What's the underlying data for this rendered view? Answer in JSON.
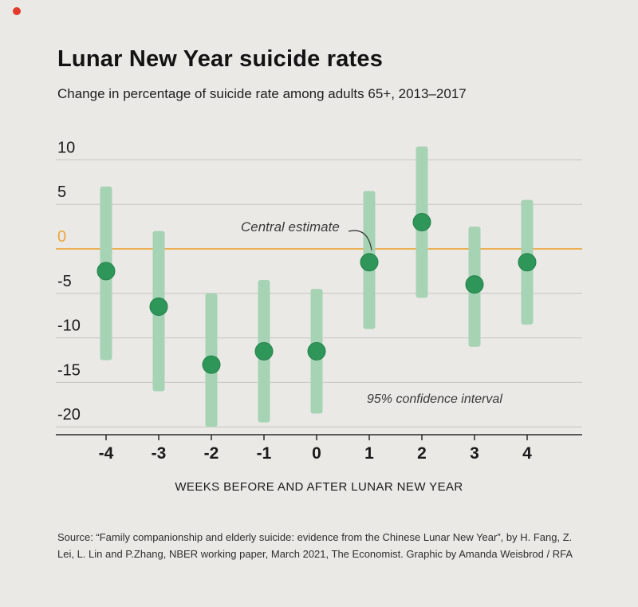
{
  "page": {
    "title": "Lunar New Year suicide rates",
    "subtitle": "Change in percentage of suicide rate among adults 65+, 2013–2017",
    "source": "Source: “Family companionship and elderly suicide: evidence from the Chinese Lunar New Year”, by H. Fang, Z. Lei, L. Lin and P.Zhang, NBER working paper, March 2021, The Economist. Graphic by Amanda Weisbrod / RFA"
  },
  "colors": {
    "background": "#eae9e6",
    "accent_red": "#e23b2e",
    "gridline": "#c7c6c2",
    "zero_line": "#eca73c",
    "ci_bar": "#a5d3b4",
    "estimate_dot": "#2f9659",
    "axis": "#2b2b2b",
    "text": "#1a1a1a"
  },
  "chart_data": {
    "type": "scatter",
    "title": "Lunar New Year suicide rates",
    "subtitle": "Change in percentage of suicide rate among adults 65+, 2013–2017",
    "xlabel": "WEEKS BEFORE AND AFTER LUNAR NEW YEAR",
    "ylabel": "",
    "categories": [
      -4,
      -3,
      -2,
      -1,
      0,
      1,
      2,
      3,
      4
    ],
    "series": [
      {
        "name": "Central estimate",
        "values": [
          -2.5,
          -6.5,
          -13,
          -11.5,
          -11.5,
          -1.5,
          3,
          -4,
          -1.5
        ]
      },
      {
        "name": "95% CI lower",
        "values": [
          -12.5,
          -16,
          -20,
          -19.5,
          -18.5,
          -9,
          -5.5,
          -11,
          -8.5
        ]
      },
      {
        "name": "95% CI upper",
        "values": [
          7,
          2,
          -5,
          -3.5,
          -4.5,
          6.5,
          11.5,
          2.5,
          5.5
        ]
      }
    ],
    "yticks": [
      10,
      5,
      0,
      -5,
      -10,
      -15,
      -20
    ],
    "ylim": [
      -22,
      12
    ],
    "grid": true,
    "legend_position": "none",
    "zero_line_color": "#eca73c",
    "bar_color": "#a5d3b4",
    "dot_color": "#2f9659",
    "annotations": [
      {
        "text": "Central estimate",
        "target_week": 1
      },
      {
        "text": "95% confidence interval"
      }
    ]
  }
}
